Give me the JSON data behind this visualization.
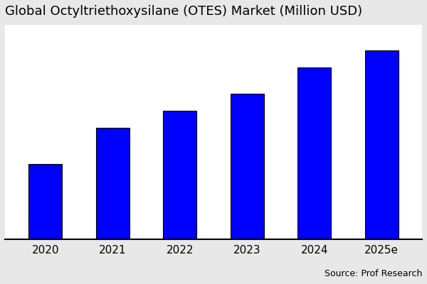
{
  "title": "Global Octyltriethoxysilane (OTES) Market (Million USD)",
  "categories": [
    "2020",
    "2021",
    "2022",
    "2023",
    "2024",
    "2025e"
  ],
  "values": [
    35,
    52,
    60,
    68,
    80,
    88
  ],
  "bar_color": "#0000FF",
  "bar_edgecolor": "#000000",
  "background_color": "#e8e8e8",
  "plot_bg_color": "#ffffff",
  "source_text": "Source: Prof Research",
  "title_fontsize": 13,
  "tick_fontsize": 11,
  "ylim": [
    0,
    100
  ],
  "bar_width": 0.5
}
